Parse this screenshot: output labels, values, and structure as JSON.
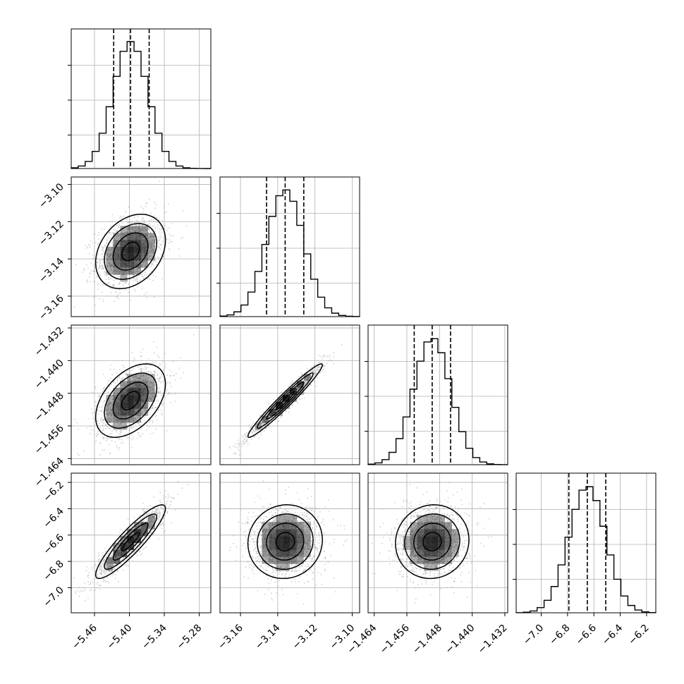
{
  "chart_data": {
    "type": "corner",
    "description_type": "scatter/histogram matrix",
    "parameters": [
      {
        "index": 0,
        "range": [
          -5.5,
          -5.26
        ],
        "ticks": [
          -5.46,
          -5.4,
          -5.34,
          -5.28
        ],
        "tick_labels": [
          "−5.46",
          "−5.40",
          "−5.34",
          "−5.28"
        ],
        "quantiles": [
          -5.427,
          -5.398,
          -5.366
        ],
        "hist_peak": -5.398,
        "hist_sigma": 0.03
      },
      {
        "index": 1,
        "range": [
          -3.171,
          -3.096
        ],
        "ticks": [
          -3.16,
          -3.14,
          -3.12,
          -3.1
        ],
        "tick_labels": [
          "−3.16",
          "−3.14",
          "−3.12",
          "−3.10"
        ],
        "quantiles": [
          -3.146,
          -3.136,
          -3.126
        ],
        "hist_peak": -3.136,
        "hist_sigma": 0.01
      },
      {
        "index": 2,
        "range": [
          -1.4655,
          -1.4313
        ],
        "ticks": [
          -1.464,
          -1.456,
          -1.448,
          -1.44,
          -1.432
        ],
        "tick_labels": [
          "−1.464",
          "−1.456",
          "−1.448",
          "−1.440",
          "−1.432"
        ],
        "quantiles": [
          -1.4542,
          -1.4498,
          -1.4453
        ],
        "hist_peak": -1.4498,
        "hist_sigma": 0.0045
      },
      {
        "index": 3,
        "range": [
          -7.19,
          -6.13
        ],
        "ticks": [
          -7.0,
          -6.8,
          -6.6,
          -6.4,
          -6.2
        ],
        "tick_labels": [
          "−7.0",
          "−6.8",
          "−6.6",
          "−6.4",
          "−6.2"
        ],
        "quantiles": [
          -6.79,
          -6.65,
          -6.51
        ],
        "hist_peak": -6.65,
        "hist_sigma": 0.14
      }
    ],
    "correlations": {
      "1-0": 0.3,
      "2-0": 0.45,
      "2-1": 0.97,
      "3-0": 0.9,
      "3-1": 0.05,
      "3-2": 0.05
    },
    "contour_levels_sigma": [
      0.5,
      1.0,
      1.5,
      2.0
    ],
    "grid": true,
    "colors": {
      "line": "#000000",
      "points": "#aaaaaa",
      "grid": "#b0b0b0",
      "density": "#000000"
    }
  }
}
